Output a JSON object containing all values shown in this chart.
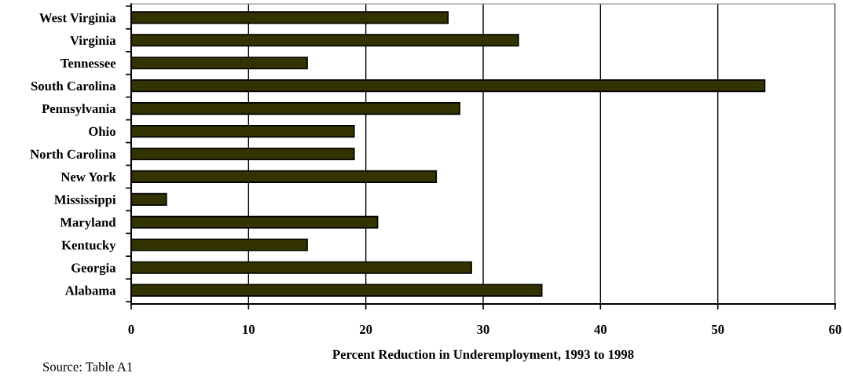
{
  "chart_data": {
    "type": "bar",
    "orientation": "horizontal",
    "xlabel": "Percent Reduction in Underemployment, 1993 to 1998",
    "categories": [
      "West Virginia",
      "Virginia",
      "Tennessee",
      "South Carolina",
      "Pennsylvania",
      "Ohio",
      "North Carolina",
      "New York",
      "Mississippi",
      "Maryland",
      "Kentucky",
      "Georgia",
      "Alabama"
    ],
    "values": [
      27,
      33,
      15,
      54,
      28,
      19,
      19,
      26,
      3,
      21,
      15,
      29,
      35
    ],
    "color": "#333300",
    "xlim": [
      0,
      60
    ],
    "xticks": [
      0,
      10,
      20,
      30,
      40,
      50,
      60
    ],
    "grid": "x",
    "legend": false,
    "annotations": [
      "Source: Table A1"
    ]
  }
}
